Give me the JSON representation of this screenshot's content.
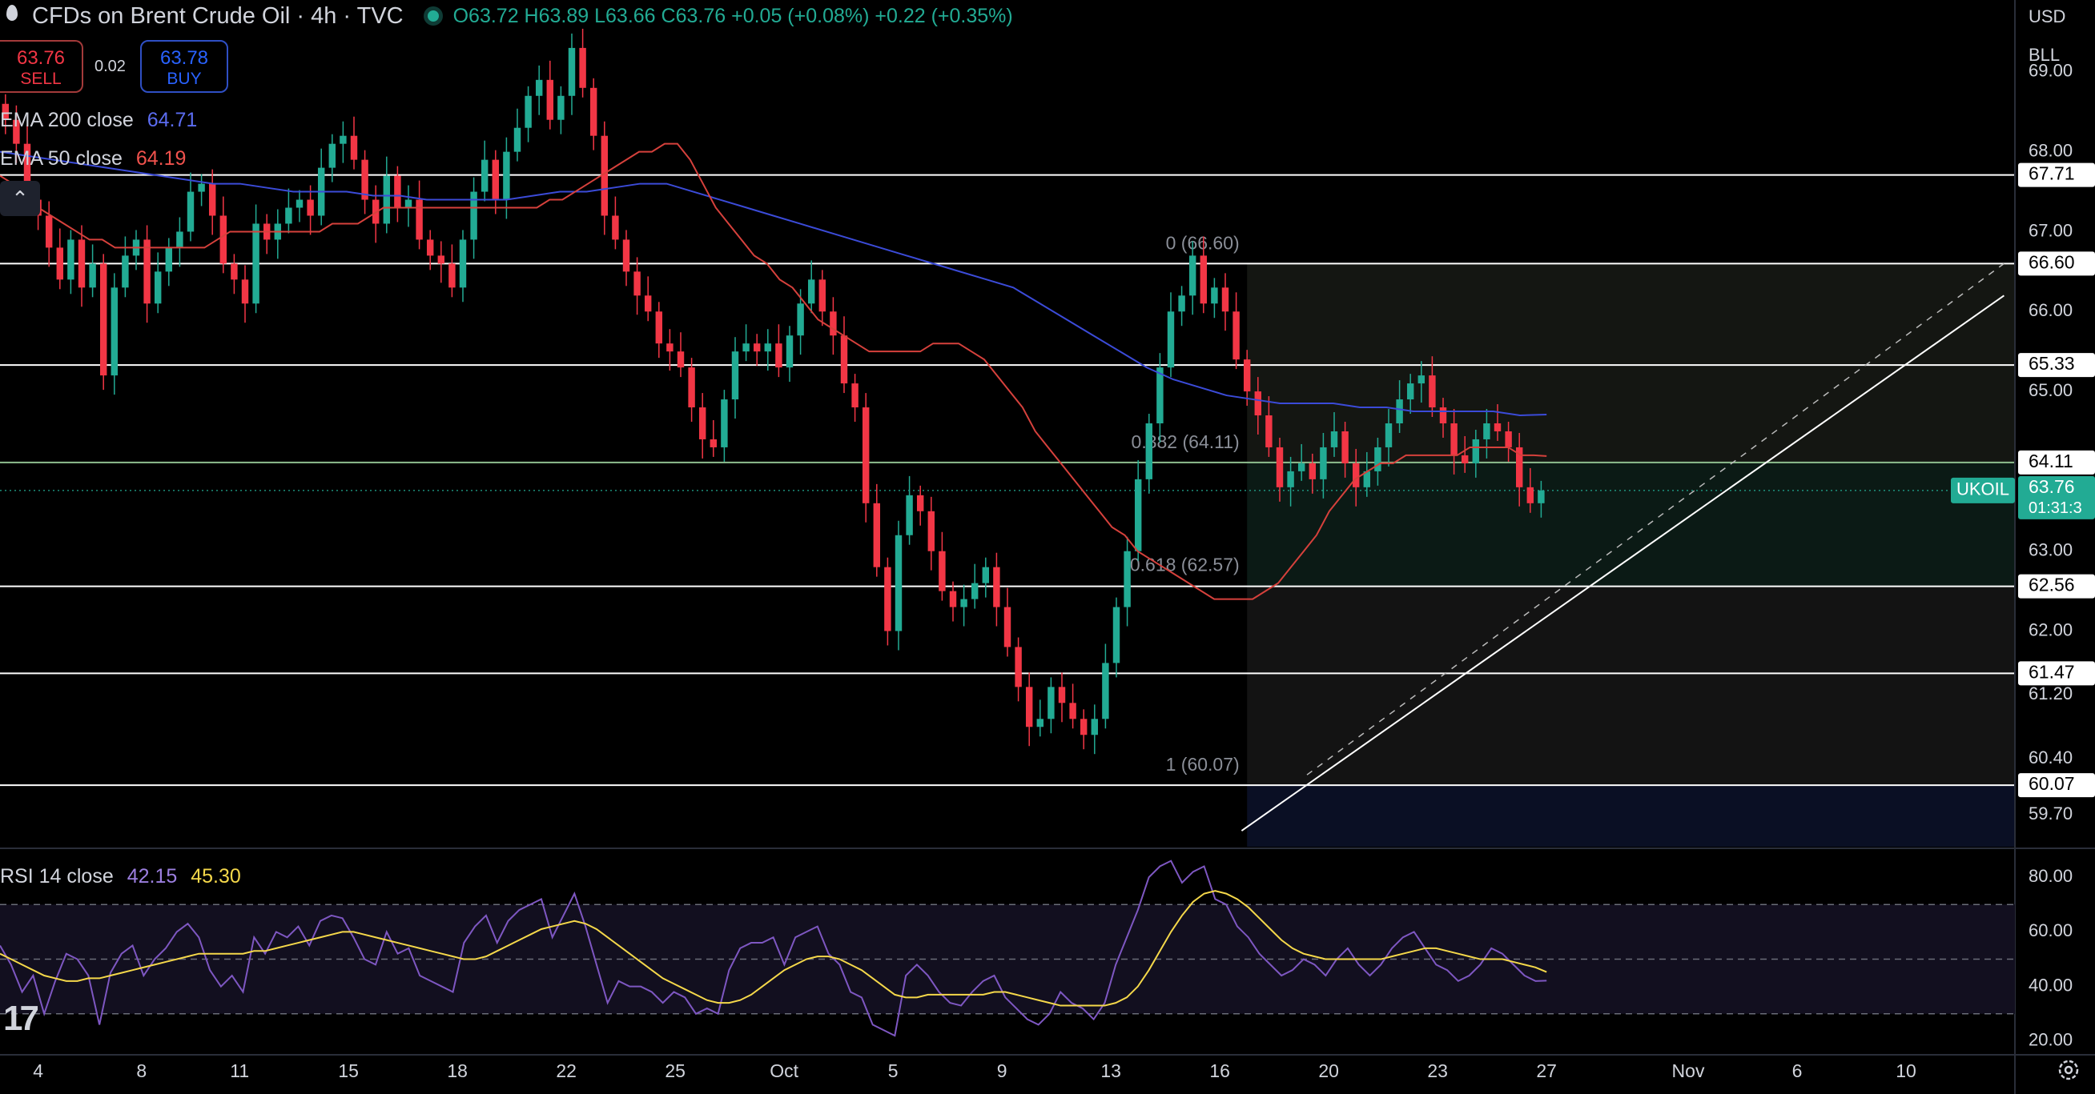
{
  "header": {
    "title": "CFDs on Brent Crude Oil · 4h · TVC",
    "ohlc": "O63.72 H63.89 L63.66 C63.76 +0.05 (+0.08%) +0.22 (+0.35%)"
  },
  "trade": {
    "sell_price": "63.76",
    "sell_label": "SELL",
    "spread": "0.02",
    "buy_price": "63.78",
    "buy_label": "BUY"
  },
  "indicators": {
    "ema200_label": "EMA 200 close",
    "ema200_value": "64.71",
    "ema50_label": "EMA 50 close",
    "ema50_value": "64.19",
    "rsi_label": "RSI 14 close",
    "rsi_value": "42.15",
    "rsi_ma_value": "45.30"
  },
  "axis_units": {
    "currency": "USD",
    "unit": "BLL"
  },
  "colors": {
    "up": "#22ab94",
    "down": "#f23645",
    "ema200": "#3b4bd8",
    "ema50": "#d6413c",
    "rsi": "#7e57c2",
    "rsi_ma": "#f5d84a",
    "level": "#ffffff",
    "fib_mid": "#8fbf8f"
  },
  "icons": [
    "drop-icon",
    "chevron-up-icon",
    "tradingview-logo-icon",
    "settings-icon"
  ],
  "chart_data": {
    "type": "candlestick",
    "title": "CFDs on Brent Crude Oil · 4h · TVC",
    "symbol": "UKOIL",
    "last_price": 63.76,
    "countdown": "01:31:3",
    "ylim": [
      59.3,
      69.9
    ],
    "y_ticks": [
      59.7,
      60.4,
      61.2,
      62.0,
      63.0,
      64.0,
      65.0,
      66.0,
      67.0,
      68.0,
      69.0
    ],
    "y_tick_labels": [
      "59.70",
      "60.40",
      "61.20",
      "62.00",
      "63.00",
      "64.00",
      "65.00",
      "66.00",
      "67.00",
      "68.00",
      "69.00"
    ],
    "x_ticks": [
      "4",
      "8",
      "11",
      "15",
      "18",
      "22",
      "25",
      "Oct",
      "5",
      "9",
      "13",
      "16",
      "20",
      "23",
      "27",
      "Nov",
      "6",
      "10"
    ],
    "x_tick_index": [
      3.5,
      13,
      22,
      32,
      42,
      52,
      62,
      72,
      82,
      92,
      102,
      112,
      122,
      132,
      142,
      155,
      165,
      175
    ],
    "x_index_range": [
      0,
      185
    ],
    "levels": [
      {
        "value": 67.71,
        "label": "67.71"
      },
      {
        "value": 66.6,
        "label": "66.60"
      },
      {
        "value": 65.33,
        "label": "65.33"
      },
      {
        "value": 64.11,
        "label": "64.11"
      },
      {
        "value": 62.56,
        "label": "62.56"
      },
      {
        "value": 61.47,
        "label": "61.47"
      },
      {
        "value": 60.07,
        "label": "60.07"
      }
    ],
    "fibonacci": [
      {
        "ratio": "0",
        "value": 66.6,
        "label": "0 (66.60)"
      },
      {
        "ratio": "0.382",
        "value": 64.11,
        "label": "0.382 (64.11)"
      },
      {
        "ratio": "0.618",
        "value": 62.57,
        "label": "0.618 (62.57)"
      },
      {
        "ratio": "1",
        "value": 60.07,
        "label": "1 (60.07)"
      }
    ],
    "trendline": {
      "from": [
        114,
        59.5
      ],
      "to": [
        184,
        66.2
      ]
    },
    "trendline_dashed": {
      "from": [
        120,
        60.2
      ],
      "to": [
        184,
        66.6
      ]
    },
    "closes": [
      68.4,
      68.1,
      67.4,
      67.2,
      66.8,
      66.4,
      66.9,
      66.3,
      66.6,
      65.2,
      66.3,
      66.7,
      66.9,
      66.1,
      66.5,
      66.8,
      67.0,
      67.5,
      67.6,
      67.2,
      66.6,
      66.4,
      66.1,
      67.1,
      66.9,
      67.1,
      67.3,
      67.4,
      67.2,
      67.8,
      68.1,
      68.2,
      67.9,
      67.4,
      67.1,
      67.7,
      67.3,
      67.4,
      66.9,
      66.7,
      66.6,
      66.3,
      66.9,
      67.5,
      67.9,
      67.4,
      68.0,
      68.3,
      68.7,
      68.9,
      68.4,
      68.7,
      69.3,
      68.8,
      68.2,
      67.2,
      66.9,
      66.5,
      66.2,
      66.0,
      65.6,
      65.5,
      65.3,
      64.8,
      64.4,
      64.3,
      64.9,
      65.5,
      65.6,
      65.5,
      65.6,
      65.3,
      65.7,
      66.1,
      66.4,
      66.0,
      65.7,
      65.1,
      64.8,
      63.6,
      62.8,
      62.0,
      63.2,
      63.7,
      63.5,
      63.0,
      62.5,
      62.3,
      62.4,
      62.6,
      62.8,
      62.3,
      61.8,
      61.3,
      60.8,
      60.9,
      61.3,
      61.1,
      60.9,
      60.7,
      60.9,
      61.6,
      62.3,
      63.0,
      63.9,
      64.6,
      65.3,
      66.0,
      66.2,
      66.7,
      66.1,
      66.3,
      66.0,
      65.4,
      65.0,
      64.7,
      64.3,
      63.8,
      64.0,
      64.1,
      63.9,
      64.3,
      64.5,
      64.1,
      63.8,
      64.0,
      64.3,
      64.6,
      64.9,
      65.1,
      65.2,
      64.8,
      64.6,
      64.2,
      64.1,
      64.4,
      64.6,
      64.5,
      64.3,
      63.8,
      63.6,
      63.76
    ],
    "ema50": [
      67.7,
      67.6,
      67.5,
      67.3,
      67.2,
      67.1,
      67.0,
      66.9,
      66.9,
      66.8,
      66.8,
      66.8,
      66.8,
      66.8,
      66.8,
      66.8,
      66.8,
      66.9,
      67.0,
      67.0,
      67.0,
      67.0,
      67.0,
      67.0,
      67.0,
      67.0,
      67.1,
      67.1,
      67.1,
      67.2,
      67.3,
      67.3,
      67.3,
      67.3,
      67.3,
      67.3,
      67.3,
      67.3,
      67.3,
      67.3,
      67.3,
      67.3,
      67.3,
      67.4,
      67.4,
      67.5,
      67.6,
      67.7,
      67.8,
      67.9,
      68.0,
      68.0,
      68.1,
      68.1,
      67.9,
      67.6,
      67.3,
      67.1,
      66.9,
      66.7,
      66.6,
      66.4,
      66.3,
      66.1,
      65.9,
      65.8,
      65.7,
      65.6,
      65.5,
      65.5,
      65.5,
      65.5,
      65.5,
      65.6,
      65.6,
      65.6,
      65.5,
      65.4,
      65.2,
      65.0,
      64.8,
      64.5,
      64.3,
      64.1,
      63.9,
      63.7,
      63.5,
      63.3,
      63.2,
      63.0,
      62.9,
      62.8,
      62.7,
      62.6,
      62.5,
      62.4,
      62.4,
      62.4,
      62.4,
      62.5,
      62.6,
      62.8,
      63.0,
      63.2,
      63.5,
      63.7,
      63.9,
      64.0,
      64.1,
      64.1,
      64.2,
      64.2,
      64.2,
      64.2,
      64.2,
      64.3,
      64.3,
      64.3,
      64.3,
      64.2,
      64.2,
      64.19
    ],
    "ema50_start_index": 0,
    "ema200": [
      68.0,
      67.95,
      67.9,
      67.85,
      67.8,
      67.75,
      67.7,
      67.65,
      67.6,
      67.6,
      67.55,
      67.5,
      67.5,
      67.5,
      67.45,
      67.45,
      67.4,
      67.4,
      67.4,
      67.4,
      67.45,
      67.5,
      67.5,
      67.55,
      67.6,
      67.6,
      67.5,
      67.4,
      67.3,
      67.2,
      67.1,
      67.0,
      66.9,
      66.8,
      66.7,
      66.6,
      66.5,
      66.4,
      66.3,
      66.1,
      65.9,
      65.7,
      65.5,
      65.3,
      65.15,
      65.05,
      64.95,
      64.9,
      64.85,
      64.85,
      64.85,
      64.8,
      64.8,
      64.75,
      64.75,
      64.75,
      64.75,
      64.7,
      64.71
    ],
    "ema200_start_index": 0,
    "rsi_ylim": [
      15,
      90
    ],
    "rsi_ticks": [
      20,
      40,
      60,
      80
    ],
    "rsi_tick_labels": [
      "20.00",
      "40.00",
      "60.00",
      "80.00"
    ],
    "rsi_bands": [
      30,
      50,
      70
    ],
    "rsi": [
      55,
      48,
      38,
      44,
      30,
      42,
      52,
      50,
      44,
      26,
      45,
      52,
      55,
      44,
      50,
      54,
      60,
      63,
      58,
      46,
      40,
      44,
      38,
      58,
      52,
      60,
      58,
      62,
      55,
      64,
      66,
      65,
      58,
      50,
      48,
      60,
      52,
      54,
      44,
      42,
      40,
      38,
      56,
      62,
      66,
      56,
      64,
      68,
      70,
      72,
      58,
      66,
      74,
      62,
      48,
      34,
      42,
      40,
      40,
      38,
      34,
      38,
      36,
      30,
      32,
      30,
      46,
      54,
      56,
      56,
      58,
      48,
      58,
      60,
      62,
      52,
      48,
      38,
      36,
      26,
      24,
      22,
      44,
      48,
      44,
      38,
      34,
      33,
      38,
      42,
      44,
      36,
      32,
      28,
      26,
      30,
      38,
      34,
      32,
      28,
      34,
      48,
      58,
      68,
      80,
      84,
      86,
      78,
      82,
      84,
      72,
      70,
      62,
      58,
      52,
      48,
      44,
      46,
      50,
      48,
      44,
      50,
      54,
      48,
      44,
      48,
      54,
      58,
      60,
      54,
      48,
      46,
      42,
      44,
      48,
      54,
      52,
      48,
      44,
      42,
      42.15
    ],
    "rsi_ma": [
      52,
      50,
      48,
      46,
      44,
      43,
      42,
      42,
      43,
      43,
      44,
      45,
      46,
      47,
      48,
      49,
      50,
      51,
      52,
      52,
      52,
      52,
      52,
      53,
      53,
      54,
      55,
      56,
      57,
      58,
      59,
      60,
      60,
      59,
      58,
      57,
      56,
      55,
      54,
      53,
      52,
      51,
      50,
      50,
      51,
      53,
      55,
      57,
      59,
      61,
      62,
      63,
      64,
      63,
      61,
      58,
      55,
      52,
      49,
      46,
      43,
      41,
      39,
      37,
      35,
      34,
      34,
      35,
      37,
      40,
      43,
      46,
      48,
      50,
      51,
      51,
      50,
      48,
      46,
      43,
      40,
      37,
      36,
      36,
      37,
      37,
      37,
      37,
      37,
      37,
      38,
      38,
      37,
      36,
      35,
      34,
      33,
      33,
      33,
      33,
      33,
      34,
      36,
      40,
      46,
      53,
      60,
      66,
      71,
      74,
      75,
      74,
      72,
      69,
      65,
      61,
      57,
      54,
      52,
      51,
      50,
      50,
      50,
      50,
      50,
      50,
      51,
      52,
      53,
      54,
      54,
      53,
      52,
      51,
      50,
      50,
      50,
      49,
      48,
      47,
      45.3
    ]
  }
}
